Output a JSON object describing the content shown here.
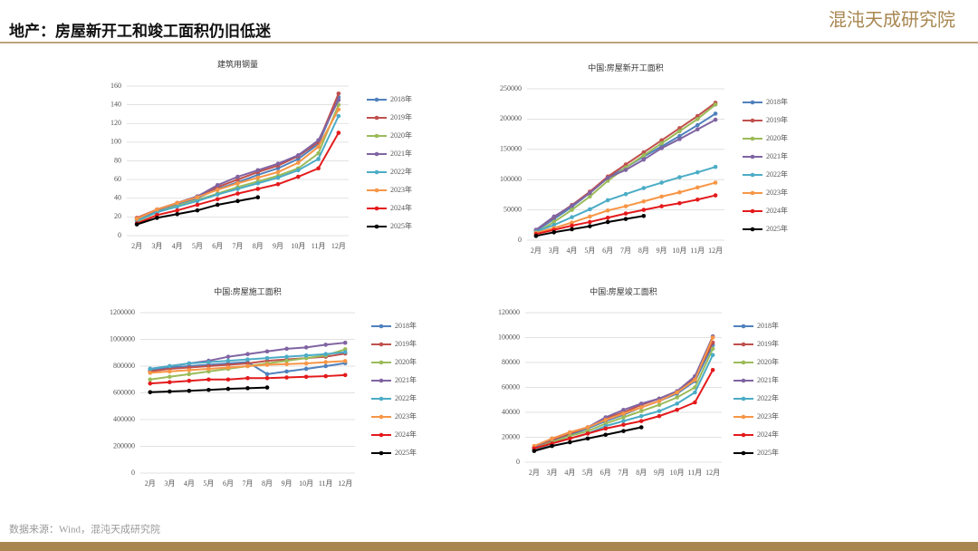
{
  "header": {
    "title": "地产：房屋新开工和竣工面积仍旧低迷",
    "logo": "混沌天成研究院"
  },
  "footer": {
    "source": "数据来源：Wind，混沌天成研究院"
  },
  "chart_data": [
    {
      "type": "line",
      "title": "建筑用钢量",
      "categories": [
        "2月",
        "3月",
        "4月",
        "5月",
        "6月",
        "7月",
        "8月",
        "9月",
        "10月",
        "11月",
        "12月"
      ],
      "ylim": [
        0,
        160
      ],
      "yticks": [
        0,
        20,
        40,
        60,
        80,
        100,
        120,
        140,
        160
      ],
      "grid": true,
      "legend": "right",
      "series": [
        {
          "name": "2018年",
          "color": "#4f81bd",
          "values": [
            18,
            27,
            34,
            40,
            50,
            57,
            65,
            72,
            82,
            98,
            148
          ]
        },
        {
          "name": "2019年",
          "color": "#c0504d",
          "values": [
            19,
            28,
            35,
            42,
            52,
            60,
            68,
            75,
            85,
            100,
            152
          ]
        },
        {
          "name": "2020年",
          "color": "#9bbb59",
          "values": [
            15,
            25,
            32,
            38,
            45,
            52,
            58,
            64,
            72,
            88,
            140
          ]
        },
        {
          "name": "2021年",
          "color": "#8064a2",
          "values": [
            17,
            28,
            35,
            42,
            54,
            63,
            70,
            77,
            86,
            102,
            145
          ]
        },
        {
          "name": "2022年",
          "color": "#4bacc6",
          "values": [
            16,
            25,
            31,
            37,
            44,
            50,
            56,
            62,
            70,
            82,
            128
          ]
        },
        {
          "name": "2023年",
          "color": "#f79646",
          "values": [
            18,
            28,
            35,
            41,
            49,
            56,
            62,
            68,
            78,
            95,
            135
          ]
        },
        {
          "name": "2024年",
          "color": "#e41a1c",
          "values": [
            13,
            22,
            27,
            33,
            39,
            45,
            50,
            55,
            63,
            72,
            110
          ]
        },
        {
          "name": "2025年",
          "color": "#000000",
          "values": [
            12,
            19,
            23,
            27,
            33,
            37,
            41,
            null,
            null,
            null,
            null
          ]
        }
      ]
    },
    {
      "type": "line",
      "title": "中国:房屋新开工面积",
      "categories": [
        "2月",
        "3月",
        "4月",
        "5月",
        "6月",
        "7月",
        "8月",
        "9月",
        "10月",
        "11月",
        "12月"
      ],
      "ylim": [
        0,
        250000
      ],
      "yticks": [
        0,
        50000,
        100000,
        150000,
        200000,
        250000
      ],
      "grid": true,
      "legend": "right",
      "series": [
        {
          "name": "2018年",
          "color": "#4f81bd",
          "values": [
            15000,
            35000,
            55000,
            78000,
            103000,
            120000,
            138000,
            155000,
            172000,
            190000,
            209000
          ]
        },
        {
          "name": "2019年",
          "color": "#c0504d",
          "values": [
            17000,
            38000,
            58000,
            80000,
            105000,
            125000,
            145000,
            165000,
            185000,
            205000,
            227000
          ]
        },
        {
          "name": "2020年",
          "color": "#9bbb59",
          "values": [
            12000,
            30000,
            50000,
            72000,
            98000,
            120000,
            140000,
            160000,
            180000,
            200000,
            224000
          ]
        },
        {
          "name": "2021年",
          "color": "#8064a2",
          "values": [
            17000,
            39000,
            57000,
            78000,
            103000,
            116000,
            133000,
            152000,
            167000,
            183000,
            199000
          ]
        },
        {
          "name": "2022年",
          "color": "#4bacc6",
          "values": [
            14000,
            25000,
            38000,
            51000,
            66000,
            76000,
            86000,
            95000,
            104000,
            112000,
            121000
          ]
        },
        {
          "name": "2023年",
          "color": "#f79646",
          "values": [
            12000,
            20000,
            29000,
            39000,
            49000,
            56000,
            64000,
            72000,
            79000,
            87000,
            95000
          ]
        },
        {
          "name": "2024年",
          "color": "#e41a1c",
          "values": [
            10000,
            17000,
            24000,
            30000,
            37000,
            44000,
            50000,
            56000,
            61000,
            67000,
            74000
          ]
        },
        {
          "name": "2025年",
          "color": "#000000",
          "values": [
            7000,
            13000,
            18000,
            23000,
            30000,
            35000,
            40000,
            null,
            null,
            null,
            null
          ]
        }
      ]
    },
    {
      "type": "line",
      "title": "中国:房屋施工面积",
      "categories": [
        "2月",
        "3月",
        "4月",
        "5月",
        "6月",
        "7月",
        "8月",
        "9月",
        "10月",
        "11月",
        "12月"
      ],
      "ylim": [
        0,
        1200000
      ],
      "yticks": [
        0,
        200000,
        400000,
        600000,
        800000,
        1000000,
        1200000
      ],
      "grid": true,
      "legend": "right",
      "series": [
        {
          "name": "2018年",
          "color": "#4f81bd",
          "values": [
            770000,
            790000,
            800000,
            810000,
            820000,
            830000,
            740000,
            760000,
            780000,
            800000,
            822000
          ]
        },
        {
          "name": "2019年",
          "color": "#c0504d",
          "values": [
            760000,
            780000,
            790000,
            800000,
            810000,
            820000,
            840000,
            850000,
            860000,
            870000,
            894000
          ]
        },
        {
          "name": "2020年",
          "color": "#9bbb59",
          "values": [
            700000,
            720000,
            740000,
            760000,
            780000,
            800000,
            820000,
            840000,
            860000,
            880000,
            926000
          ]
        },
        {
          "name": "2021年",
          "color": "#8064a2",
          "values": [
            780000,
            800000,
            820000,
            840000,
            870000,
            890000,
            910000,
            930000,
            940000,
            960000,
            975000
          ]
        },
        {
          "name": "2022年",
          "color": "#4bacc6",
          "values": [
            780000,
            800000,
            820000,
            830000,
            840000,
            850000,
            860000,
            870000,
            880000,
            890000,
            905000
          ]
        },
        {
          "name": "2023年",
          "color": "#f79646",
          "values": [
            750000,
            760000,
            770000,
            780000,
            790000,
            800000,
            810000,
            815000,
            820000,
            830000,
            838000
          ]
        },
        {
          "name": "2024年",
          "color": "#e41a1c",
          "values": [
            670000,
            680000,
            690000,
            700000,
            700000,
            710000,
            710000,
            715000,
            720000,
            725000,
            733000
          ]
        },
        {
          "name": "2025年",
          "color": "#000000",
          "values": [
            605000,
            610000,
            615000,
            622000,
            630000,
            635000,
            640000,
            null,
            null,
            null,
            null
          ]
        }
      ]
    },
    {
      "type": "line",
      "title": "中国:房屋竣工面积",
      "categories": [
        "2月",
        "3月",
        "4月",
        "5月",
        "6月",
        "7月",
        "8月",
        "9月",
        "10月",
        "11月",
        "12月"
      ],
      "ylim": [
        0,
        120000
      ],
      "yticks": [
        0,
        20000,
        40000,
        60000,
        80000,
        100000,
        120000
      ],
      "grid": true,
      "legend": "right",
      "series": [
        {
          "name": "2018年",
          "color": "#4f81bd",
          "values": [
            12000,
            17000,
            22000,
            27000,
            33000,
            38000,
            44000,
            49000,
            55000,
            65000,
            94000
          ]
        },
        {
          "name": "2019年",
          "color": "#c0504d",
          "values": [
            12000,
            18000,
            23000,
            28000,
            35000,
            40000,
            46000,
            51000,
            57000,
            68000,
            96000
          ]
        },
        {
          "name": "2020年",
          "color": "#9bbb59",
          "values": [
            11000,
            16000,
            21000,
            25000,
            31000,
            36000,
            41000,
            46000,
            52000,
            60000,
            91000
          ]
        },
        {
          "name": "2021年",
          "color": "#8064a2",
          "values": [
            12000,
            19000,
            24000,
            28000,
            36000,
            42000,
            47000,
            51000,
            57000,
            69000,
            101000
          ]
        },
        {
          "name": "2022年",
          "color": "#4bacc6",
          "values": [
            10000,
            15000,
            19000,
            23000,
            29000,
            33000,
            37000,
            41000,
            47000,
            56000,
            86000
          ]
        },
        {
          "name": "2023年",
          "color": "#f79646",
          "values": [
            13000,
            19000,
            24000,
            28000,
            34000,
            39000,
            44000,
            49000,
            56000,
            66000,
            100000
          ]
        },
        {
          "name": "2024年",
          "color": "#e41a1c",
          "values": [
            11000,
            15000,
            19000,
            23000,
            27000,
            30000,
            33000,
            37000,
            42000,
            48000,
            74000
          ]
        },
        {
          "name": "2025年",
          "color": "#000000",
          "values": [
            9000,
            13000,
            16000,
            19000,
            22000,
            25000,
            28000,
            null,
            null,
            null,
            null
          ]
        }
      ]
    }
  ]
}
